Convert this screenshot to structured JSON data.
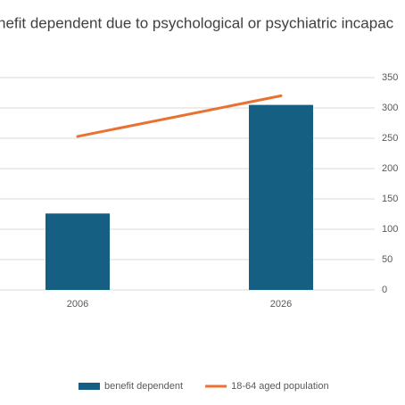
{
  "chart_data": {
    "type": "bar",
    "title": "nefit dependent due to psychological or psychiatric incapac",
    "categories": [
      "2006",
      "2026"
    ],
    "series": [
      {
        "name": "benefit dependent",
        "type": "bar",
        "color": "#156082",
        "values": [
          126,
          305
        ]
      },
      {
        "name": "18-64 aged population",
        "type": "line",
        "color": "#e97132",
        "values": [
          253,
          320
        ]
      }
    ],
    "ylim": [
      0,
      350
    ],
    "yticks": [
      0,
      50,
      100,
      150,
      200,
      250,
      300,
      350
    ],
    "grid": true,
    "legend": "bottom"
  }
}
